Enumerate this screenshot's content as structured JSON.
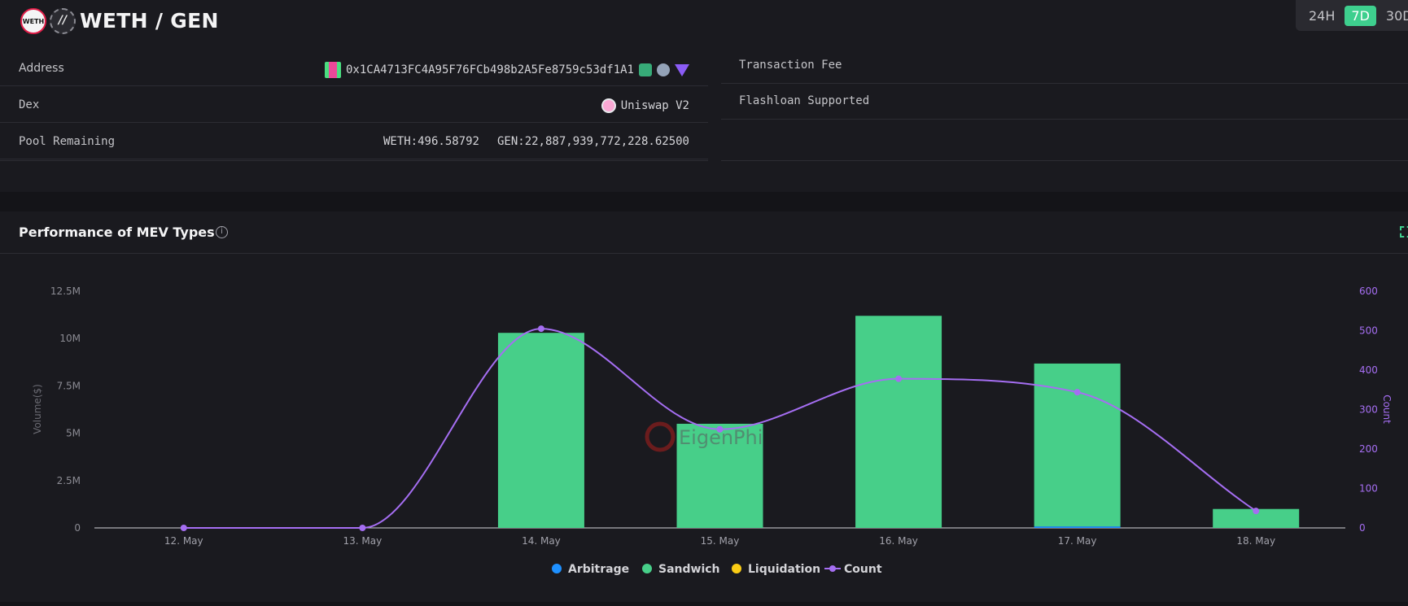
{
  "header": {
    "token_a_icon": "WETH",
    "token_b_icon": "//",
    "pair_title": "WETH / GEN",
    "ranges": [
      {
        "label": "24H",
        "active": false
      },
      {
        "label": "7D",
        "active": true
      },
      {
        "label": "30D",
        "active": false
      }
    ]
  },
  "info_left": {
    "address_label": "Address",
    "address_value": "0x1CA4713FC4A95F76FCb498b2A5Fe8759c53df1A1",
    "dex_label": "Dex",
    "dex_value": "Uniswap V2",
    "pool_label": "Pool Remaining",
    "pool_weth": "WETH:496.58792",
    "pool_gen": "GEN:22,887,939,772,228.62500"
  },
  "info_right": {
    "fee_label": "Transaction Fee",
    "fee_value": "-",
    "flashloan_label": "Flashloan Supported"
  },
  "card": {
    "title": "Performance of MEV Types",
    "info_glyph": "i"
  },
  "colors": {
    "arbitrage": "#1e90ff",
    "sandwich": "#47cf89",
    "liquidation": "#facc15",
    "count": "#a56ef2",
    "accent": "#3ecf8e"
  },
  "chart_data": {
    "type": "bar",
    "categories": [
      "12. May",
      "13. May",
      "14. May",
      "15. May",
      "16. May",
      "17. May",
      "18. May"
    ],
    "series": [
      {
        "name": "Arbitrage",
        "values": [
          0,
          0,
          0,
          0,
          0,
          80000,
          0
        ]
      },
      {
        "name": "Sandwich",
        "values": [
          0,
          0,
          10300000,
          5500000,
          11200000,
          8600000,
          1000000
        ]
      },
      {
        "name": "Liquidation",
        "values": [
          0,
          0,
          0,
          0,
          0,
          0,
          0
        ]
      },
      {
        "name": "Count",
        "axis": "right",
        "values": [
          0,
          0,
          505,
          250,
          378,
          344,
          43
        ]
      }
    ],
    "ylabel": "Volume($)",
    "y2label": "Count",
    "ylim": [
      0,
      12500000
    ],
    "y2lim": [
      0,
      600
    ],
    "y_ticks": [
      "0",
      "2.5M",
      "5M",
      "7.5M",
      "10M",
      "12.5M"
    ],
    "y2_ticks": [
      "0",
      "100",
      "200",
      "300",
      "400",
      "500",
      "600"
    ],
    "legend": [
      "Arbitrage",
      "Sandwich",
      "Liquidation",
      "Count"
    ],
    "legend_position": "bottom-center",
    "watermark": "EigenPhi"
  }
}
